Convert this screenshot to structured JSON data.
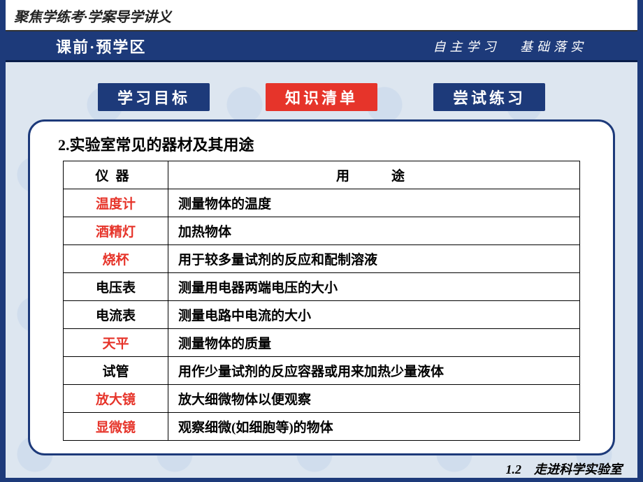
{
  "top_title": "聚焦学练考·学案导学讲义",
  "section": {
    "left": "课前·预学区",
    "right1": "自主学习",
    "right2": "基础落实"
  },
  "tabs": {
    "t1": "学习目标",
    "t2": "知识清单",
    "t3": "尝试练习"
  },
  "heading": "2.实验室常见的器材及其用途",
  "table": {
    "head_instr": "仪器",
    "head_use": "用途",
    "rows": [
      {
        "instr": "温度计",
        "instr_red": true,
        "use": "测量物体的温度"
      },
      {
        "instr": "酒精灯",
        "instr_red": true,
        "use": "加热物体"
      },
      {
        "instr": "烧杯",
        "instr_red": true,
        "use": "用于较多量试剂的反应和配制溶液"
      },
      {
        "instr": "电压表",
        "instr_red": false,
        "use": "测量用电器两端电压的大小"
      },
      {
        "instr": "电流表",
        "instr_red": false,
        "use": "测量电路中电流的大小"
      },
      {
        "instr": "天平",
        "instr_red": true,
        "use": "测量物体的质量"
      },
      {
        "instr": "试管",
        "instr_red": false,
        "use": "用作少量试剂的反应容器或用来加热少量液体"
      },
      {
        "instr": "放大镜",
        "instr_red": true,
        "use": "放大细微物体以便观察"
      },
      {
        "instr": "显微镜",
        "instr_red": true,
        "use": "观察细微(如细胞等)的物体"
      }
    ]
  },
  "footer": "1.2　走进科学实验室",
  "colors": {
    "brand_blue": "#1d3a7a",
    "brand_red": "#e6342a",
    "bg": "#dde6f0",
    "text": "#000000"
  }
}
